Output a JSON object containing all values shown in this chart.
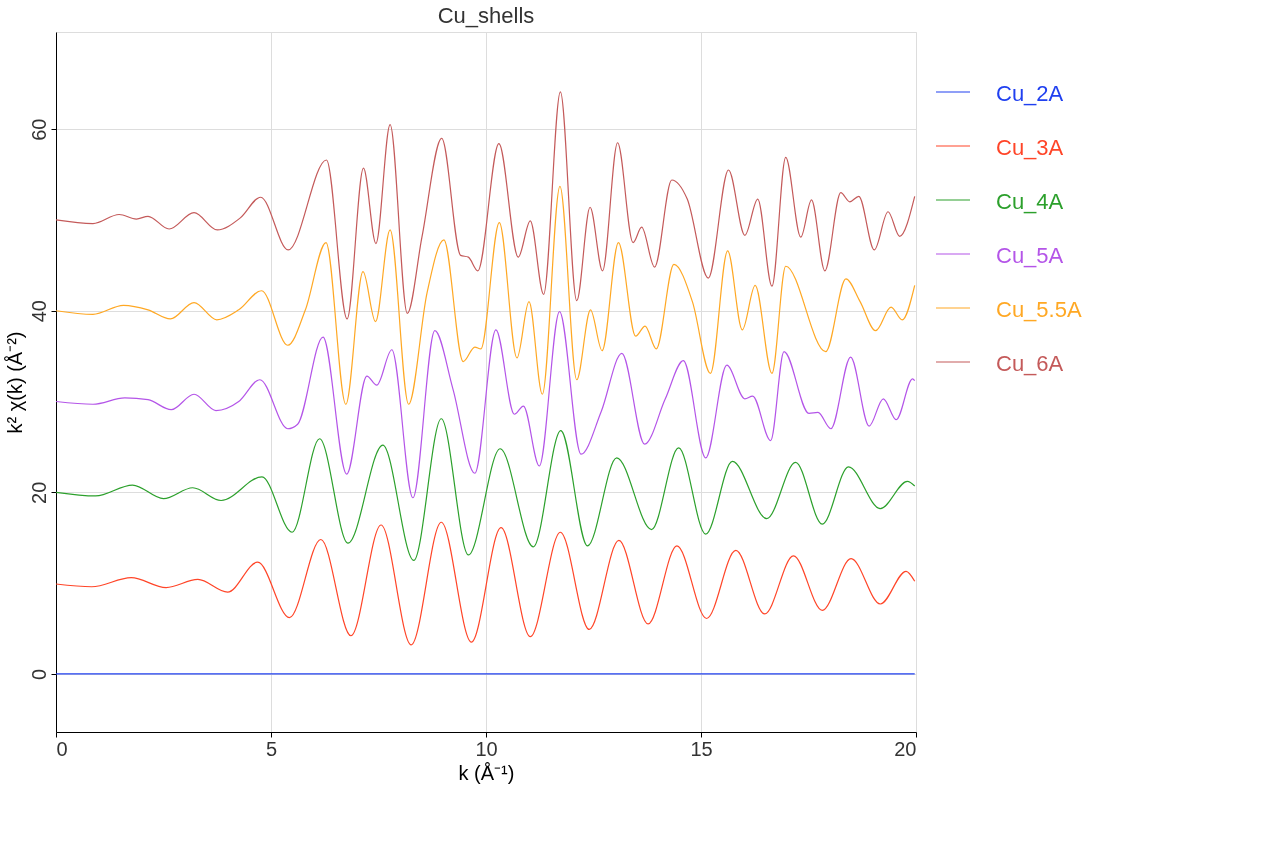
{
  "chart_data": {
    "type": "line",
    "title": "Cu_shells",
    "xlabel": "k (Å⁻¹)",
    "ylabel": "k² χ(k) (Å⁻²)",
    "xlim": [
      0,
      20
    ],
    "ylim": [
      -6.4,
      70.7
    ],
    "xticks": [
      0,
      5,
      10,
      15,
      20
    ],
    "yticks": [
      0,
      20,
      40,
      60
    ],
    "grid": true,
    "legend": "right",
    "marker": "none",
    "line_style": "solid",
    "series": [
      {
        "name": "Cu_2A",
        "color": "#2040f0",
        "x": [
          0,
          5,
          10,
          15,
          19.97
        ],
        "values": [
          0,
          0,
          0,
          0,
          0
        ]
      },
      {
        "name": "Cu_3A",
        "color": "#ff4528",
        "x": [
          0,
          0.83,
          1.75,
          2.56,
          3.3,
          3.99,
          4.69,
          5.43,
          6.16,
          6.86,
          7.56,
          8.26,
          8.96,
          9.66,
          10.35,
          11.03,
          11.73,
          12.4,
          13.09,
          13.77,
          14.44,
          15.13,
          15.81,
          16.48,
          17.15,
          17.82,
          18.49,
          19.17,
          19.77,
          19.97
        ],
        "values": [
          9.9,
          9.6,
          10.6,
          9.5,
          10.4,
          9.0,
          12.3,
          6.2,
          14.8,
          4.2,
          16.4,
          3.2,
          16.7,
          3.5,
          16.1,
          4.1,
          15.6,
          4.9,
          14.7,
          5.5,
          14.1,
          6.1,
          13.6,
          6.6,
          13.0,
          7.0,
          12.7,
          7.7,
          11.3,
          10.2
        ]
      },
      {
        "name": "Cu_4A",
        "color": "#2ca02c",
        "x": [
          0,
          0.92,
          1.78,
          2.5,
          3.18,
          3.84,
          4.79,
          5.49,
          6.13,
          6.79,
          7.6,
          8.32,
          8.96,
          9.59,
          10.33,
          11.1,
          11.74,
          12.36,
          13.04,
          13.85,
          14.48,
          15.11,
          15.73,
          16.53,
          17.2,
          17.82,
          18.43,
          19.17,
          19.8,
          19.97
        ],
        "values": [
          20.0,
          19.6,
          20.8,
          19.3,
          20.5,
          19.1,
          21.7,
          15.6,
          25.9,
          14.4,
          25.2,
          12.5,
          28.1,
          13.1,
          24.8,
          14.0,
          26.8,
          14.1,
          23.8,
          15.9,
          24.9,
          15.4,
          23.4,
          17.1,
          23.3,
          16.5,
          22.8,
          18.2,
          21.2,
          20.7
        ]
      },
      {
        "name": "Cu_5A",
        "color": "#b455e8",
        "x": [
          0,
          0.86,
          1.6,
          2.14,
          2.68,
          3.21,
          3.72,
          4.25,
          4.74,
          5.39,
          5.62,
          6.21,
          6.76,
          7.23,
          7.46,
          7.81,
          8.3,
          8.81,
          9.23,
          9.74,
          10.23,
          10.66,
          10.87,
          11.24,
          11.71,
          12.21,
          12.68,
          13.16,
          13.69,
          14.17,
          14.59,
          15.11,
          15.6,
          16.02,
          16.2,
          16.62,
          16.93,
          17.51,
          17.72,
          18.02,
          18.48,
          18.91,
          19.24,
          19.54,
          19.92,
          19.97
        ],
        "values": [
          30.0,
          29.7,
          30.4,
          30.2,
          29.1,
          30.8,
          29.0,
          30.0,
          32.4,
          27.0,
          27.5,
          37.1,
          22.0,
          32.8,
          31.8,
          35.7,
          19.4,
          37.8,
          31.4,
          22.1,
          37.9,
          28.6,
          29.5,
          22.9,
          39.9,
          24.2,
          28.9,
          35.3,
          25.3,
          30.3,
          34.5,
          23.8,
          34.0,
          30.3,
          30.6,
          25.7,
          35.5,
          28.7,
          28.8,
          27.0,
          34.9,
          27.3,
          30.3,
          28.0,
          32.5,
          32.3
        ]
      },
      {
        "name": "Cu_5.5A",
        "color": "#ffa824",
        "x": [
          0,
          0.86,
          1.57,
          2.14,
          2.66,
          3.21,
          3.74,
          4.25,
          4.78,
          5.39,
          5.8,
          6.28,
          6.74,
          7.14,
          7.43,
          7.77,
          8.2,
          8.63,
          9.02,
          9.47,
          9.74,
          9.88,
          10.31,
          10.72,
          11.0,
          11.31,
          11.72,
          12.11,
          12.43,
          12.7,
          13.08,
          13.48,
          13.7,
          13.96,
          14.37,
          14.8,
          15.22,
          15.62,
          15.96,
          16.26,
          16.65,
          16.97,
          17.9,
          18.37,
          18.7,
          19.06,
          19.42,
          19.68,
          19.97
        ],
        "values": [
          40.0,
          39.6,
          40.6,
          40.1,
          39.1,
          40.9,
          39.0,
          40.1,
          42.2,
          36.2,
          40.1,
          47.5,
          29.7,
          44.3,
          38.8,
          48.9,
          29.7,
          42.0,
          47.8,
          34.4,
          36.0,
          35.8,
          49.7,
          34.8,
          41.0,
          30.8,
          53.7,
          32.4,
          40.1,
          35.6,
          47.5,
          37.2,
          38.3,
          35.8,
          45.1,
          41.0,
          33.1,
          46.6,
          37.9,
          42.8,
          33.1,
          44.9,
          35.5,
          43.5,
          41.0,
          37.8,
          40.4,
          39.0,
          42.8
        ]
      },
      {
        "name": "Cu_6A",
        "color": "#c45a5a",
        "x": [
          0,
          0.86,
          1.47,
          1.87,
          2.14,
          2.63,
          3.21,
          3.75,
          4.28,
          4.76,
          5.4,
          6.29,
          6.77,
          7.15,
          7.44,
          7.77,
          8.17,
          8.51,
          8.97,
          9.41,
          9.59,
          9.81,
          10.3,
          10.75,
          11.03,
          11.34,
          11.73,
          12.11,
          12.42,
          12.71,
          13.06,
          13.42,
          13.62,
          13.92,
          14.32,
          14.68,
          15.17,
          15.64,
          16.02,
          16.32,
          16.65,
          16.97,
          17.32,
          17.57,
          17.88,
          18.25,
          18.46,
          18.67,
          19.03,
          19.35,
          19.62,
          19.97
        ],
        "values": [
          50.0,
          49.6,
          50.6,
          50.1,
          50.4,
          49.0,
          50.8,
          48.9,
          50.2,
          52.5,
          46.7,
          56.6,
          39.1,
          55.7,
          47.4,
          60.5,
          39.7,
          48.1,
          59.0,
          46.1,
          45.9,
          44.4,
          58.4,
          45.9,
          49.9,
          41.8,
          64.1,
          41.1,
          51.4,
          44.4,
          58.5,
          47.5,
          49.2,
          44.8,
          54.4,
          52.3,
          43.6,
          55.5,
          48.3,
          52.3,
          42.7,
          56.9,
          48.1,
          52.2,
          44.4,
          53.0,
          52.0,
          52.6,
          46.7,
          50.9,
          48.2,
          52.6
        ]
      }
    ]
  }
}
